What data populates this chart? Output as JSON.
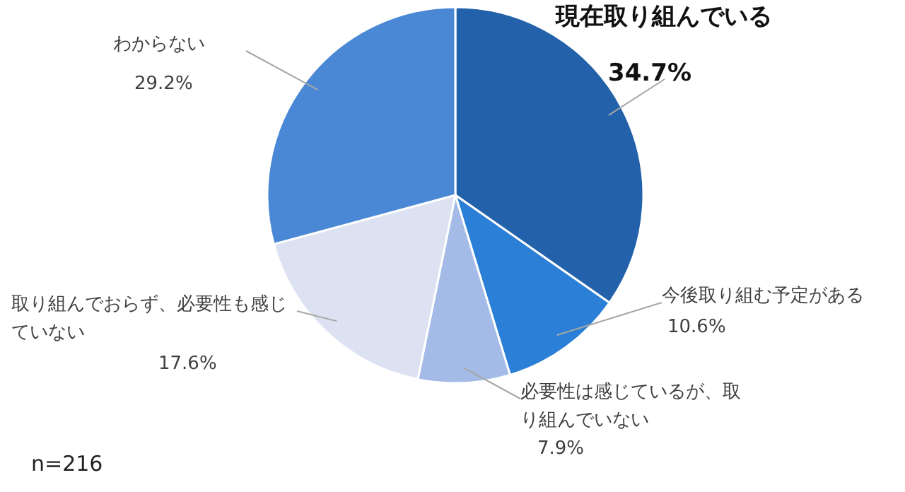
{
  "chart_data": {
    "type": "pie",
    "categories": [
      "現在取り組んでいる",
      "今後取り組む予定がある",
      "必要性は感じているが、取り組んでいない",
      "取り組んでおらず、必要性も感じていない",
      "わからない"
    ],
    "values": [
      34.7,
      10.6,
      7.9,
      17.6,
      29.2
    ],
    "value_labels": [
      "34.7%",
      "10.6%",
      "7.9%",
      "17.6%",
      "29.2%"
    ],
    "colors": [
      "#2362ab",
      "#2b7fd6",
      "#a3bbe6",
      "#dce2f2",
      "#4a88d6"
    ],
    "annotations": [
      "n=216"
    ]
  }
}
